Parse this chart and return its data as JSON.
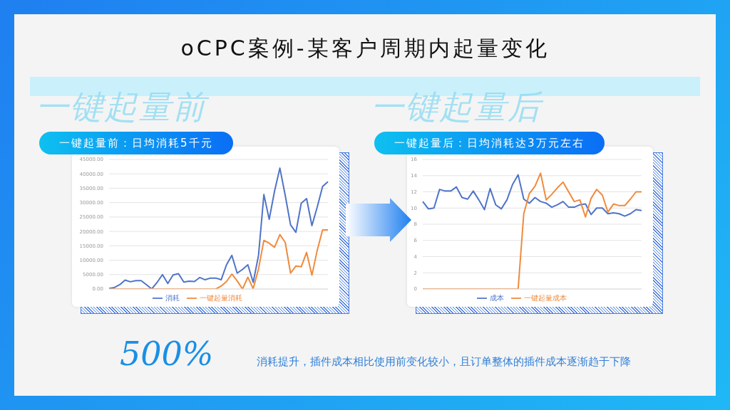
{
  "chart_data": [
    {
      "type": "line",
      "title": "一键起量前：日均消耗5千元",
      "subtitle": "一键起量前",
      "annotations": [
        "oCPC案例-某客户周期内起量变化",
        "500%",
        "消耗提升，插件成本相比使用前变化较小，且订单整体的插件成本逐渐趋于下降"
      ],
      "categories": [
        null,
        null,
        null,
        null,
        null,
        null,
        null,
        null,
        null,
        null,
        null,
        null,
        null,
        null,
        null,
        null,
        null,
        null,
        null,
        null,
        null,
        null,
        null,
        null,
        null,
        null,
        null,
        null,
        null,
        null,
        null,
        null,
        null,
        null,
        null,
        null,
        null,
        null,
        null,
        null,
        null,
        null
      ],
      "series": [
        {
          "name": "消耗",
          "color": "#4f74c8",
          "values": [
            200,
            500,
            1500,
            3100,
            2500,
            2900,
            2900,
            1500,
            0,
            2300,
            5000,
            1900,
            4900,
            5300,
            2400,
            2700,
            2600,
            4000,
            3200,
            3800,
            3800,
            3200,
            8400,
            11700,
            5500,
            6800,
            8400,
            2300,
            11700,
            32800,
            24200,
            34000,
            42000,
            32500,
            22300,
            19700,
            29800,
            31400,
            22000,
            28500,
            35600,
            37300
          ]
        },
        {
          "name": "一键起量消耗",
          "color": "#f08a3c",
          "values": [
            0,
            0,
            0,
            0,
            0,
            0,
            0,
            0,
            0,
            0,
            0,
            0,
            0,
            0,
            0,
            0,
            0,
            0,
            0,
            0,
            0,
            1000,
            2600,
            5200,
            2800,
            0,
            4100,
            100,
            7000,
            16900,
            15900,
            14500,
            18900,
            16200,
            5500,
            8000,
            7700,
            12700,
            4800,
            13500,
            20500,
            20500
          ]
        }
      ],
      "ylim": [
        0,
        45000
      ],
      "yticks": [
        {
          "value": 0,
          "label": "0.00"
        },
        {
          "value": 5000,
          "label": "5000.00"
        },
        {
          "value": 10000,
          "label": "10000.00"
        },
        {
          "value": 15000,
          "label": "15000.00"
        },
        {
          "value": 20000,
          "label": "20000.00"
        },
        {
          "value": 25000,
          "label": "25000.00"
        },
        {
          "value": 30000,
          "label": "30000.00"
        },
        {
          "value": 35000,
          "label": "35000.00"
        },
        {
          "value": 40000,
          "label": "40000.00"
        },
        {
          "value": 45000,
          "label": "45000.00"
        }
      ],
      "grid": "y",
      "legend": "bottom",
      "marker": "none"
    },
    {
      "type": "line",
      "title": "一键起量后：日均消耗达3万元左右",
      "subtitle": "一键起量后",
      "categories": [
        null,
        null,
        null,
        null,
        null,
        null,
        null,
        null,
        null,
        null,
        null,
        null,
        null,
        null,
        null,
        null,
        null,
        null,
        null,
        null,
        null,
        null,
        null,
        null,
        null,
        null,
        null,
        null,
        null,
        null,
        null,
        null,
        null,
        null,
        null,
        null,
        null,
        null,
        null,
        null
      ],
      "series": [
        {
          "name": "成本",
          "color": "#4f74c8",
          "values": [
            10.8,
            9.9,
            10.0,
            12.3,
            12.1,
            12.1,
            12.6,
            11.3,
            11.1,
            12.1,
            11.0,
            9.8,
            12.4,
            10.4,
            9.9,
            11.0,
            12.9,
            14.1,
            11.1,
            10.6,
            11.3,
            10.8,
            10.6,
            10.1,
            10.4,
            10.8,
            10.1,
            10.1,
            10.4,
            10.5,
            9.2,
            10.0,
            10.0,
            9.3,
            9.4,
            9.3,
            9.0,
            9.3,
            9.8,
            9.7
          ]
        },
        {
          "name": "一键起量成本",
          "color": "#f08a3c",
          "values": [
            0,
            0,
            0,
            0,
            0,
            0,
            0,
            0,
            0,
            0,
            0,
            0,
            0,
            0,
            0,
            0,
            0,
            0,
            9.3,
            11.8,
            12.7,
            14.3,
            11.0,
            11.7,
            12.5,
            13.2,
            12.0,
            10.8,
            11.0,
            8.9,
            11.2,
            12.3,
            11.6,
            9.5,
            10.5,
            10.3,
            10.3,
            11.1,
            12.0,
            12.0
          ]
        }
      ],
      "ylim": [
        0,
        16
      ],
      "yticks": [
        0,
        2,
        4,
        6,
        8,
        10,
        12,
        14,
        16
      ],
      "grid": "y",
      "legend": "bottom",
      "marker": "none"
    }
  ]
}
